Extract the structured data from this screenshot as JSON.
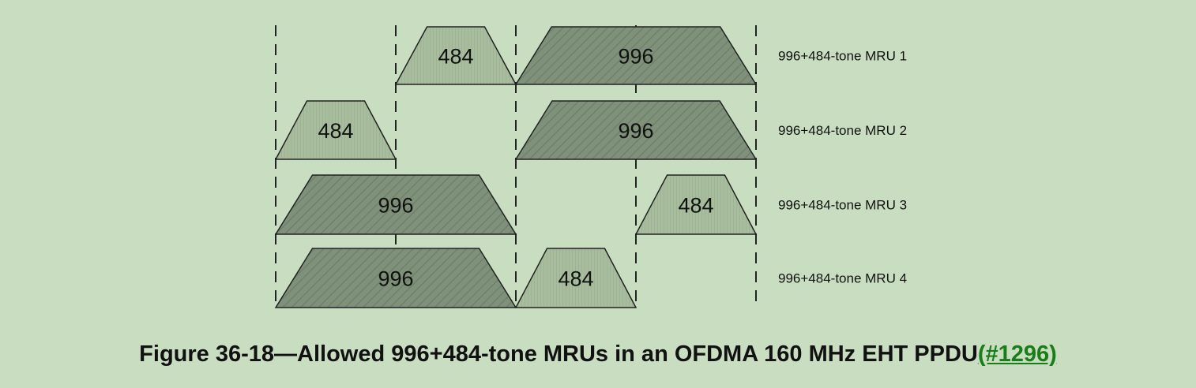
{
  "rows": [
    {
      "label": "996+484-tone MRU 1",
      "blocks": [
        {
          "text": "484",
          "kind": "484"
        },
        {
          "text": "996",
          "kind": "996"
        }
      ]
    },
    {
      "label": "996+484-tone MRU 2",
      "blocks": [
        {
          "text": "484",
          "kind": "484"
        },
        {
          "text": "996",
          "kind": "996"
        }
      ]
    },
    {
      "label": "996+484-tone MRU 3",
      "blocks": [
        {
          "text": "996",
          "kind": "996"
        },
        {
          "text": "484",
          "kind": "484"
        }
      ]
    },
    {
      "label": "996+484-tone MRU 4",
      "blocks": [
        {
          "text": "996",
          "kind": "996"
        },
        {
          "text": "484",
          "kind": "484"
        }
      ]
    }
  ],
  "caption": {
    "text": "Figure 36-18—Allowed 996+484-tone MRUs in an OFDMA 160 MHz EHT PPDU",
    "ref": "(#1296)"
  },
  "colors": {
    "background": "#c9dec0",
    "block_996": "#7f917a",
    "block_484": "#a8bd9e",
    "outline": "#222222",
    "ref_link": "#1a7d1a"
  }
}
